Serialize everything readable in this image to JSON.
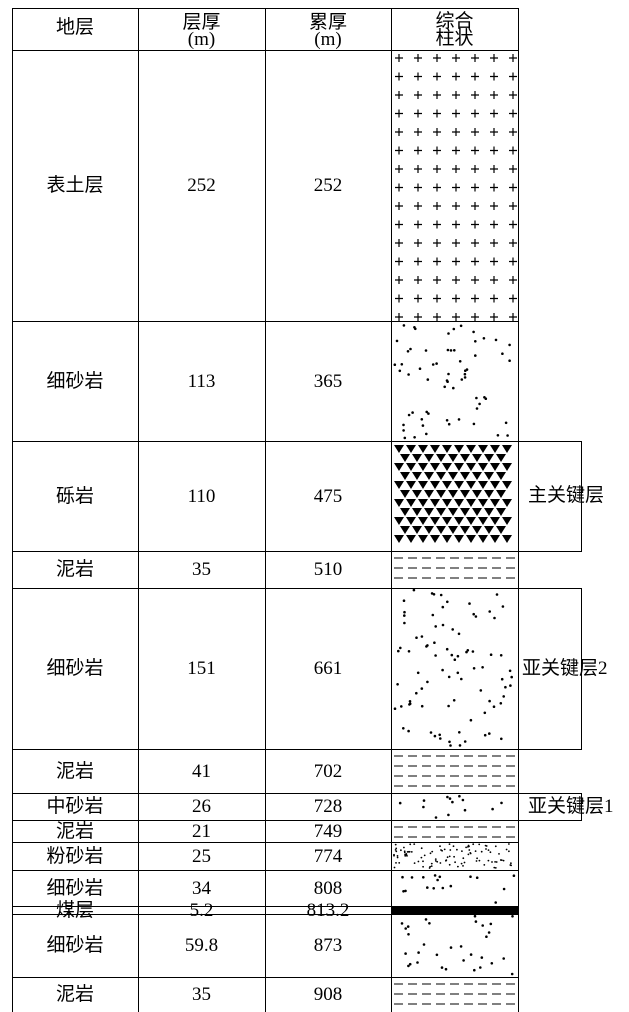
{
  "header": {
    "stratum": "地层",
    "thickness_line1": "层厚",
    "thickness_line2": "(m)",
    "cumulative_line1": "累厚",
    "cumulative_line2": "(m)",
    "column_line1": "综合",
    "column_line2": "柱状"
  },
  "layers": [
    {
      "name": "表土层",
      "thickness": "252",
      "cumulative": "252",
      "lithology": "cross"
    },
    {
      "name": "细砂岩",
      "thickness": "113",
      "cumulative": "365",
      "lithology": "dots"
    },
    {
      "name": "砾岩",
      "thickness": "110",
      "cumulative": "475",
      "lithology": "triangles"
    },
    {
      "name": "泥岩",
      "thickness": "35",
      "cumulative": "510",
      "lithology": "dashes"
    },
    {
      "name": "细砂岩",
      "thickness": "151",
      "cumulative": "661",
      "lithology": "dots"
    },
    {
      "name": "泥岩",
      "thickness": "41",
      "cumulative": "702",
      "lithology": "dashes"
    },
    {
      "name": "中砂岩",
      "thickness": "26",
      "cumulative": "728",
      "lithology": "dots"
    },
    {
      "name": "泥岩",
      "thickness": "21",
      "cumulative": "749",
      "lithology": "dashes"
    },
    {
      "name": "粉砂岩",
      "thickness": "25",
      "cumulative": "774",
      "lithology": "finedots"
    },
    {
      "name": "细砂岩",
      "thickness": "34",
      "cumulative": "808",
      "lithology": "dots"
    },
    {
      "name": "煤层",
      "thickness": "5.2",
      "cumulative": "813.2",
      "lithology": "coal"
    },
    {
      "name": "细砂岩",
      "thickness": "59.8",
      "cumulative": "873",
      "lithology": "dots"
    },
    {
      "name": "泥岩",
      "thickness": "35",
      "cumulative": "908",
      "lithology": "dashes"
    }
  ],
  "key_strata": [
    {
      "label": "主关键层",
      "layer_index": 2
    },
    {
      "label": "亚关键层2",
      "layer_index": 4
    },
    {
      "label": "亚关键层1",
      "layer_index": 6
    }
  ]
}
